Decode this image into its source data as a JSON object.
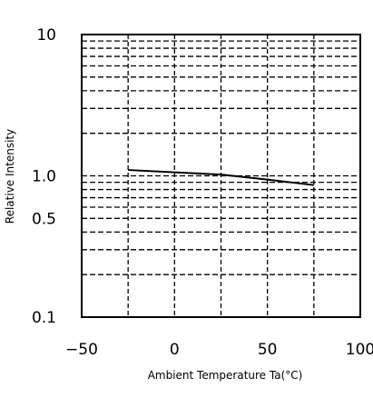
{
  "chart_data": {
    "type": "line",
    "title": "",
    "xlabel": "Ambient Temperature Ta(°C)",
    "ylabel": "Relative Intensity",
    "xlim": [
      -50,
      100
    ],
    "ylim": [
      0.1,
      10
    ],
    "yscale": "log",
    "x_ticks": [
      -50,
      0,
      50,
      100
    ],
    "x_tick_labels": [
      "−50",
      "0",
      "50",
      "100"
    ],
    "y_tick_labels": [
      {
        "value": 10,
        "label": "10"
      },
      {
        "value": 1.0,
        "label": "1.0"
      },
      {
        "value": 0.5,
        "label": "0.5"
      },
      {
        "value": 0.1,
        "label": "0.1"
      }
    ],
    "x_grid": [
      -25,
      0,
      25,
      50,
      75
    ],
    "y_grid": [
      0.2,
      0.3,
      0.4,
      0.5,
      0.6,
      0.7,
      0.8,
      0.9,
      1,
      2,
      3,
      4,
      5,
      6,
      7,
      8,
      9,
      10
    ],
    "grid": true,
    "grid_style": "dashed",
    "series": [
      {
        "x": [
          -25,
          0,
          25,
          50,
          75
        ],
        "y": [
          1.1,
          1.06,
          1.02,
          0.94,
          0.86
        ]
      }
    ]
  }
}
